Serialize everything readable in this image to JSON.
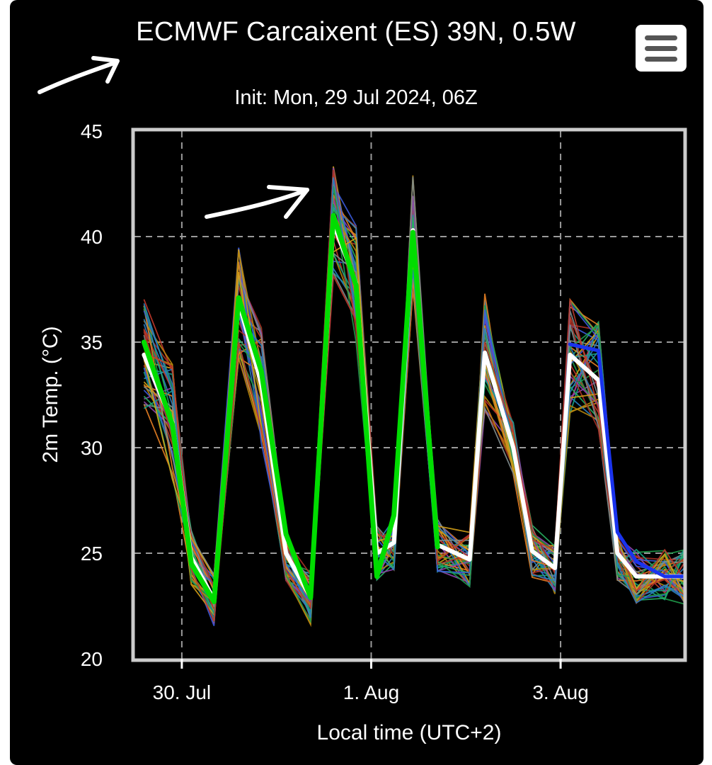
{
  "header": {
    "title": "ECMWF Carcaixent (ES) 39N, 0.5W",
    "subtitle": "Init: Mon, 29 Jul 2024, 06Z"
  },
  "menu": {
    "icon": "hamburger-menu-icon"
  },
  "annotations": {
    "arrows": [
      "white-arrow-pointing-at-title",
      "white-arrow-pointing-at-peak"
    ]
  },
  "chart_data": {
    "type": "line",
    "title": "ECMWF Carcaixent (ES) 39N, 0.5W",
    "subtitle": "Init: Mon, 29 Jul 2024, 06Z",
    "xlabel": "Local time (UTC+2)",
    "ylabel": "2m Temp. (°C)",
    "ylim": [
      20,
      45
    ],
    "yticks": [
      20,
      25,
      30,
      35,
      40,
      45
    ],
    "xlim": [
      -0.25,
      2.65
    ],
    "xticks": [
      {
        "label": "30. Jul",
        "value": 0
      },
      {
        "label": "1. Aug",
        "value": 1
      },
      {
        "label": "3. Aug",
        "value": 2
      }
    ],
    "grid": true,
    "x": [
      -0.2,
      -0.05,
      0.05,
      0.17,
      0.3,
      0.42,
      0.55,
      0.68,
      0.8,
      0.92,
      1.03,
      1.12,
      1.22,
      1.35,
      1.52,
      1.6,
      1.75,
      1.85,
      1.97,
      2.05,
      2.2,
      2.3,
      2.4,
      2.55,
      2.65
    ],
    "series": [
      {
        "color": "#ffffff",
        "width": 6,
        "values": [
          34.4,
          31.2,
          24.8,
          22.8,
          36.9,
          33,
          25,
          22.9,
          40.6,
          37.8,
          25,
          25.5,
          40.3,
          25.4,
          24.7,
          34.5,
          30,
          25.1,
          24.3,
          34.4,
          33.2,
          25,
          23.9,
          23.9,
          23.9
        ]
      },
      {
        "color": "#00dd00",
        "width": 7,
        "values": [
          35,
          31.1,
          24.5,
          22.7,
          37.1,
          33.6,
          25.9,
          22.9,
          41,
          37.7,
          23.9,
          26.8,
          40.2,
          25.3,
          null,
          null,
          null,
          null,
          null,
          null,
          null,
          null,
          null,
          null,
          null
        ]
      },
      {
        "color": "#1a33ee",
        "width": 5,
        "values": [
          null,
          null,
          null,
          null,
          null,
          null,
          null,
          null,
          null,
          null,
          null,
          null,
          null,
          null,
          null,
          35.2,
          null,
          null,
          null,
          34.9,
          34.6,
          26,
          24.6,
          23.9,
          23.9
        ]
      }
    ]
  }
}
